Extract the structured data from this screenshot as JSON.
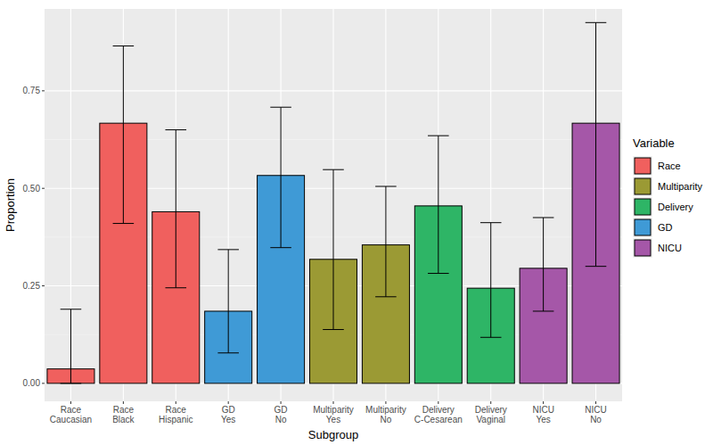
{
  "chart_data": {
    "type": "bar",
    "x_label": "Subgroup",
    "y_label": "Proportion",
    "legend_title": "Variable",
    "categories": [
      "Race\nCaucasian",
      "Race\nBlack",
      "Race\nHispanic",
      "GD\nYes",
      "GD\nNo",
      "Multiparity\nYes",
      "Multiparity\nNo",
      "Delivery\nC-Cesarean",
      "Delivery\nVaginal",
      "NICU\nYes",
      "NICU\nNo"
    ],
    "series": [
      {
        "name": "Race",
        "color": "#F0605E",
        "values": [
          0.037,
          0.667,
          0.44,
          null,
          null,
          null,
          null,
          null,
          null,
          null,
          null
        ],
        "error_low": [
          0.0,
          0.41,
          0.245,
          null,
          null,
          null,
          null,
          null,
          null,
          null,
          null
        ],
        "error_high": [
          0.19,
          0.865,
          0.65,
          null,
          null,
          null,
          null,
          null,
          null,
          null,
          null
        ]
      },
      {
        "name": "Multiparity",
        "color": "#9B9A34",
        "values": [
          null,
          null,
          null,
          null,
          null,
          0.318,
          0.355,
          null,
          null,
          null,
          null
        ],
        "error_low": [
          null,
          null,
          null,
          null,
          null,
          0.138,
          0.222,
          null,
          null,
          null,
          null
        ],
        "error_high": [
          null,
          null,
          null,
          null,
          null,
          0.548,
          0.505,
          null,
          null,
          null,
          null
        ]
      },
      {
        "name": "Delivery",
        "color": "#2EB566",
        "values": [
          null,
          null,
          null,
          null,
          null,
          null,
          null,
          0.455,
          0.244,
          null,
          null
        ],
        "error_low": [
          null,
          null,
          null,
          null,
          null,
          null,
          null,
          0.282,
          0.118,
          null,
          null
        ],
        "error_high": [
          null,
          null,
          null,
          null,
          null,
          null,
          null,
          0.635,
          0.412,
          null,
          null
        ]
      },
      {
        "name": "GD",
        "color": "#3F9AD6",
        "values": [
          null,
          null,
          null,
          0.185,
          0.533,
          null,
          null,
          null,
          null,
          null,
          null
        ],
        "error_low": [
          null,
          null,
          null,
          0.078,
          0.348,
          null,
          null,
          null,
          null,
          null,
          null
        ],
        "error_high": [
          null,
          null,
          null,
          0.343,
          0.708,
          null,
          null,
          null,
          null,
          null,
          null
        ]
      },
      {
        "name": "NICU",
        "color": "#A557A8",
        "values": [
          null,
          null,
          null,
          null,
          null,
          null,
          null,
          null,
          null,
          0.295,
          0.667
        ],
        "error_low": [
          null,
          null,
          null,
          null,
          null,
          null,
          null,
          null,
          null,
          0.185,
          0.3
        ],
        "error_high": [
          null,
          null,
          null,
          null,
          null,
          null,
          null,
          null,
          null,
          0.425,
          0.925
        ]
      }
    ],
    "ylim": [
      -0.046,
      0.96
    ],
    "yticks": [
      {
        "value": 0,
        "label": "0.00"
      },
      {
        "value": 0.25,
        "label": "0.25"
      },
      {
        "value": 0.5,
        "label": "0.50"
      },
      {
        "value": 0.75,
        "label": "0.75"
      }
    ],
    "grid": true,
    "legend": "right"
  }
}
